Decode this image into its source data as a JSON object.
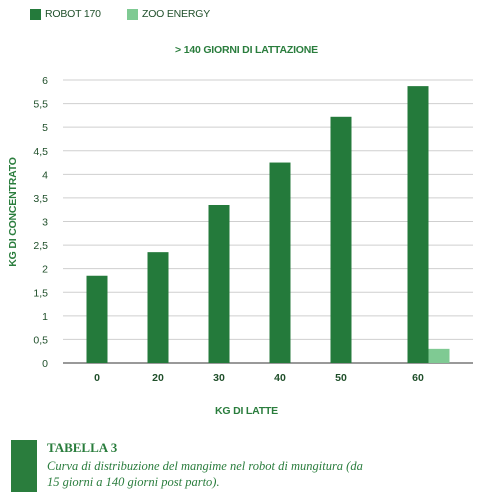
{
  "legend": {
    "items": [
      {
        "label": "ROBOT 170",
        "color": "#247a3b"
      },
      {
        "label": "ZOO ENERGY",
        "color": "#7fca93"
      }
    ]
  },
  "chart_data": {
    "type": "bar",
    "title": "> 140 GIORNI DI LATTAZIONE",
    "xlabel": "KG DI LATTE",
    "ylabel": "KG DI CONCENTRATO",
    "categories": [
      "0",
      "20",
      "30",
      "40",
      "50",
      "60"
    ],
    "series": [
      {
        "name": "ROBOT 170",
        "values": [
          1.85,
          2.35,
          3.35,
          4.25,
          5.22,
          5.87
        ],
        "color": "#247a3b"
      },
      {
        "name": "ZOO ENERGY",
        "values": [
          0,
          0,
          0,
          0,
          0,
          0.3
        ],
        "color": "#7fca93"
      }
    ],
    "yticks": [
      "0",
      "0,5",
      "1",
      "1,5",
      "2",
      "2,5",
      "3",
      "3,5",
      "4",
      "4,5",
      "5",
      "5,5",
      "6"
    ],
    "ylim": [
      0,
      6
    ],
    "grid": true,
    "legend_position": "top-left"
  },
  "caption": {
    "title": "TABELLA 3",
    "text": "Curva di distribuzione del mangime nel robot di mungitura (da 15 giorni a 140 giorni post parto)."
  }
}
